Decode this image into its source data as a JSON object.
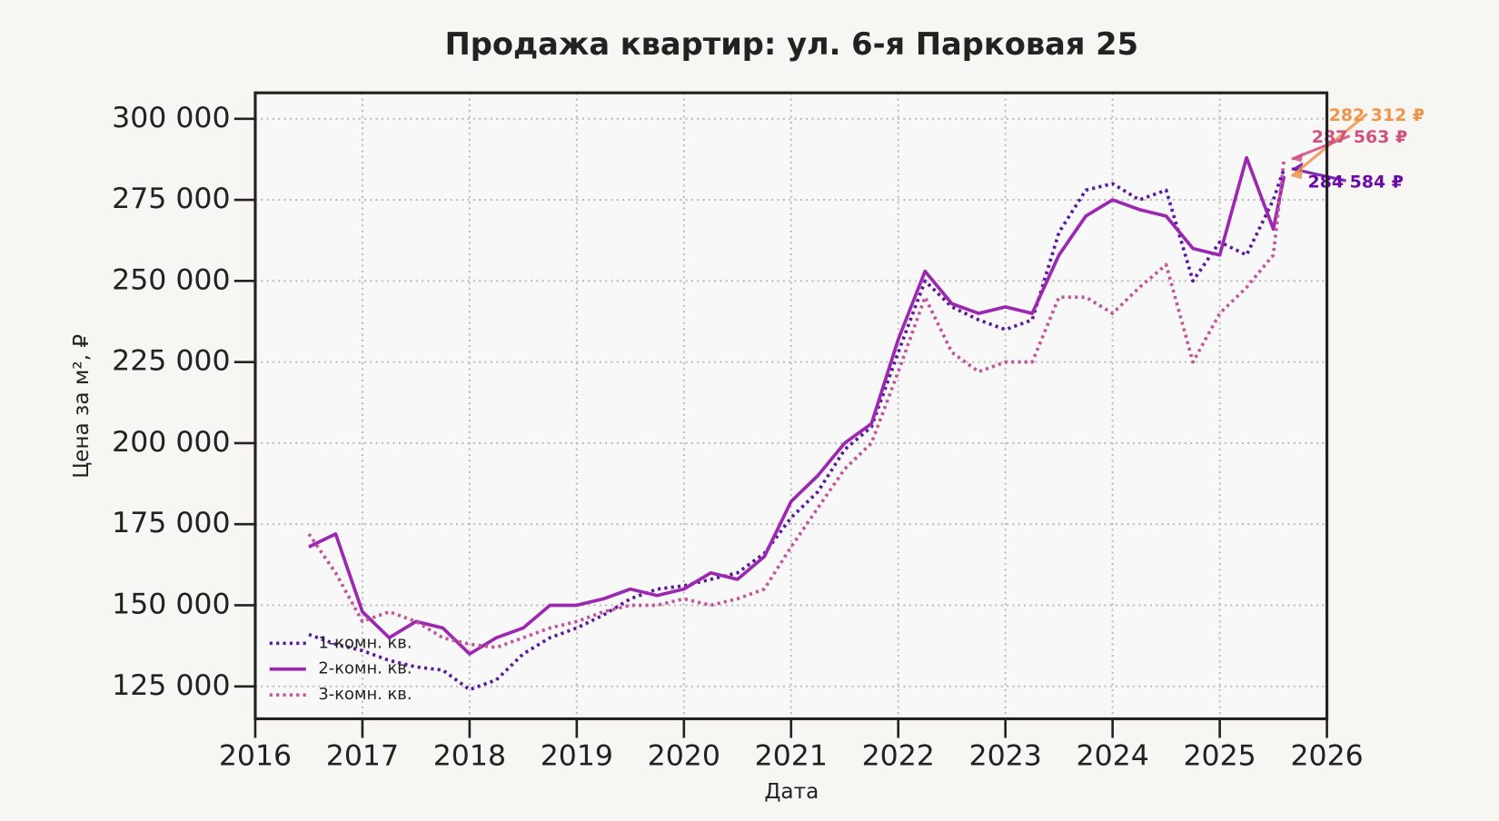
{
  "chart_data": {
    "type": "line",
    "title": "Продажа квартир: ул. 6-я Парковая 25",
    "x_label": "Дата",
    "y_label": "Цена за м², ₽",
    "x": [
      2016.5,
      2016.75,
      2017,
      2017.25,
      2017.5,
      2017.75,
      2018,
      2018.25,
      2018.5,
      2018.75,
      2019,
      2019.25,
      2019.5,
      2019.75,
      2020,
      2020.25,
      2020.5,
      2020.75,
      2021,
      2021.25,
      2021.5,
      2021.75,
      2022,
      2022.25,
      2022.5,
      2022.75,
      2023,
      2023.25,
      2023.5,
      2023.75,
      2024,
      2024.25,
      2024.5,
      2024.75,
      2025,
      2025.25,
      2025.5,
      2025.6
    ],
    "series": [
      {
        "name": "1-комн. кв.",
        "color": "#5a189a",
        "dash": "dotted",
        "values": [
          141000,
          138000,
          136000,
          133000,
          131000,
          130000,
          124000,
          127000,
          135000,
          140000,
          143000,
          147000,
          152000,
          155000,
          156000,
          158000,
          160000,
          166000,
          177000,
          185000,
          198000,
          205000,
          228000,
          250000,
          242000,
          238000,
          235000,
          238000,
          265000,
          278000,
          280000,
          275000,
          278000,
          250000,
          262000,
          258000,
          275000,
          284584
        ]
      },
      {
        "name": "2-комн. кв.",
        "color": "#9c27b0",
        "dash": "solid",
        "values": [
          168000,
          172000,
          148000,
          140000,
          145000,
          143000,
          135000,
          140000,
          143000,
          150000,
          150000,
          152000,
          155000,
          153000,
          155000,
          160000,
          158000,
          165000,
          182000,
          190000,
          200000,
          206000,
          232000,
          253000,
          243000,
          240000,
          242000,
          240000,
          258000,
          270000,
          275000,
          272000,
          270000,
          260000,
          258000,
          288000,
          266000,
          282312
        ]
      },
      {
        "name": "3-комн. кв.",
        "color": "#c2549a",
        "dash": "dotted",
        "values": [
          172000,
          160000,
          145000,
          148000,
          145000,
          140000,
          138000,
          137000,
          140000,
          143000,
          145000,
          148000,
          150000,
          150000,
          152000,
          150000,
          152000,
          155000,
          168000,
          180000,
          192000,
          200000,
          222000,
          245000,
          228000,
          222000,
          225000,
          225000,
          245000,
          245000,
          240000,
          248000,
          255000,
          225000,
          240000,
          248000,
          258000,
          287563
        ]
      }
    ],
    "annotations": [
      {
        "label": "284 584 ₽",
        "value": 284584,
        "color": "#6a0aa8"
      },
      {
        "label": "282 312 ₽",
        "value": 282312,
        "color": "#f0944a"
      },
      {
        "label": "287 563 ₽",
        "value": 287563,
        "color": "#d0507f"
      }
    ],
    "xlim": [
      2016,
      2026
    ],
    "xticks": [
      2016,
      2017,
      2018,
      2019,
      2020,
      2021,
      2022,
      2023,
      2024,
      2025,
      2026
    ],
    "ylim": [
      115000,
      308000
    ],
    "yticks": [
      {
        "value": 125000,
        "label": "125 000"
      },
      {
        "value": 150000,
        "label": "150 000"
      },
      {
        "value": 175000,
        "label": "175 000"
      },
      {
        "value": 200000,
        "label": "200 000"
      },
      {
        "value": 225000,
        "label": "225 000"
      },
      {
        "value": 250000,
        "label": "250 000"
      },
      {
        "value": 275000,
        "label": "275 000"
      },
      {
        "value": 300000,
        "label": "300 000"
      }
    ],
    "grid": true,
    "legend": "lower left"
  }
}
